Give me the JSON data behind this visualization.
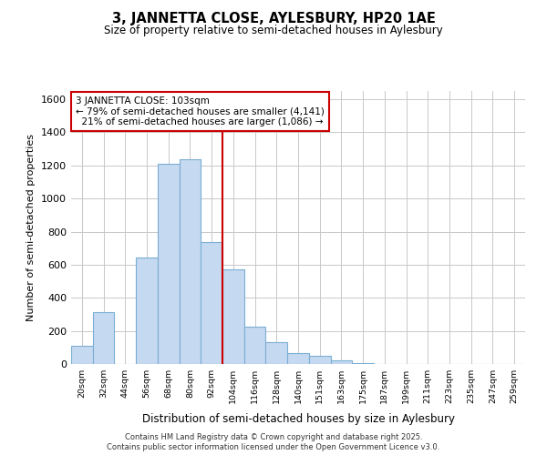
{
  "title": "3, JANNETTA CLOSE, AYLESBURY, HP20 1AE",
  "subtitle": "Size of property relative to semi-detached houses in Aylesbury",
  "xlabel": "Distribution of semi-detached houses by size in Aylesbury",
  "ylabel": "Number of semi-detached properties",
  "bin_labels": [
    "20sqm",
    "32sqm",
    "44sqm",
    "56sqm",
    "68sqm",
    "80sqm",
    "92sqm",
    "104sqm",
    "116sqm",
    "128sqm",
    "140sqm",
    "151sqm",
    "163sqm",
    "175sqm",
    "187sqm",
    "199sqm",
    "211sqm",
    "223sqm",
    "235sqm",
    "247sqm",
    "259sqm"
  ],
  "bar_heights": [
    110,
    315,
    0,
    645,
    1210,
    1235,
    735,
    570,
    225,
    130,
    65,
    50,
    20,
    5,
    0,
    0,
    0,
    0,
    0,
    0,
    0
  ],
  "bar_color": "#c5d9f0",
  "bar_edgecolor": "#7bafd4",
  "bar_linewidth": 0.8,
  "vline_bin_index": 7,
  "vline_color": "#cc0000",
  "annotation_title": "3 JANNETTA CLOSE: 103sqm",
  "pct_smaller": 79,
  "n_smaller": 4141,
  "pct_larger": 21,
  "n_larger": 1086,
  "ylim": [
    0,
    1650
  ],
  "yticks": [
    0,
    200,
    400,
    600,
    800,
    1000,
    1200,
    1400,
    1600
  ],
  "bg_color": "#ffffff",
  "plot_bg_color": "#ffffff",
  "grid_color": "#c8c8c8",
  "footer_line1": "Contains HM Land Registry data © Crown copyright and database right 2025.",
  "footer_line2": "Contains public sector information licensed under the Open Government Licence v3.0."
}
